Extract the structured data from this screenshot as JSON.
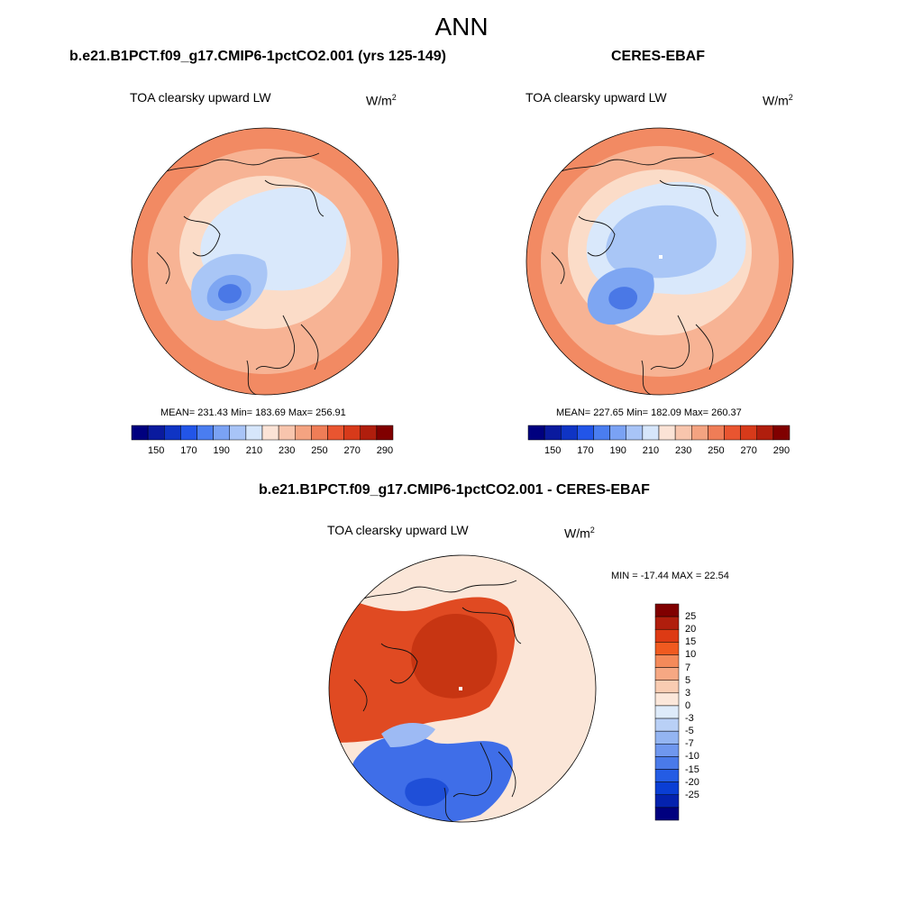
{
  "main_title": "ANN",
  "panels": {
    "model": {
      "title": "b.e21.B1PCT.f09_g17.CMIP6-1pctCO2.001 (yrs 125-149)",
      "variable": "TOA clearsky upward LW",
      "units_base": "W/m",
      "units_exp": "2",
      "stats": "MEAN= 231.43  Min= 183.69  Max= 256.91",
      "map_description": "North polar stereographic map with coastlines"
    },
    "obs": {
      "title": "CERES-EBAF",
      "variable": "TOA clearsky upward LW",
      "units_base": "W/m",
      "units_exp": "2",
      "stats": "MEAN= 227.65  Min= 182.09  Max= 260.37"
    },
    "diff": {
      "title": "b.e21.B1PCT.f09_g17.CMIP6-1pctCO2.001 - CERES-EBAF",
      "variable": "TOA clearsky upward LW",
      "units_base": "W/m",
      "units_exp": "2",
      "stats": "MIN = -17.44 MAX =  22.54"
    }
  },
  "colorbar_abs": {
    "colors": [
      "#00007f",
      "#0a1a9e",
      "#0f34c4",
      "#2255e8",
      "#4a7df0",
      "#7aa2f4",
      "#a8c4f7",
      "#d6e6fb",
      "#fbe3d6",
      "#f8c5ad",
      "#f4a381",
      "#ef7d57",
      "#e95530",
      "#d73a1a",
      "#b01e0d",
      "#800000"
    ],
    "tick_labels": [
      "150",
      "170",
      "190",
      "210",
      "230",
      "250",
      "270",
      "290"
    ]
  },
  "colorbar_diff": {
    "colors": [
      "#800000",
      "#b01e0d",
      "#dd3a14",
      "#f05a20",
      "#f48a5a",
      "#f6a883",
      "#f9ccb2",
      "#fbe7da",
      "#deebfa",
      "#b9d0f6",
      "#94b5f2",
      "#6f97ee",
      "#4a7ae9",
      "#245ce4",
      "#0a3ed4",
      "#0422ae",
      "#00007f"
    ],
    "tick_labels": [
      "25",
      "20",
      "15",
      "10",
      "7",
      "5",
      "3",
      "0",
      "-3",
      "-5",
      "-7",
      "-10",
      "-15",
      "-20",
      "-25"
    ]
  },
  "map_colors": {
    "outer": "#f28a63",
    "mid": "#f7b394",
    "pale": "#fbdcc8",
    "arctic_pale": "#d9e8fb",
    "blue_light": "#a9c6f6",
    "blue_mid": "#7ea6f2",
    "blue_deep": "#4a78e6",
    "red_strong": "#e04a22",
    "red_deep": "#c73512",
    "diff_pale": "#fbe6d8",
    "diff_blue": "#3f6ee8",
    "diff_blue_light": "#9dbaf4",
    "diff_blue_deep": "#1f4fd8"
  }
}
